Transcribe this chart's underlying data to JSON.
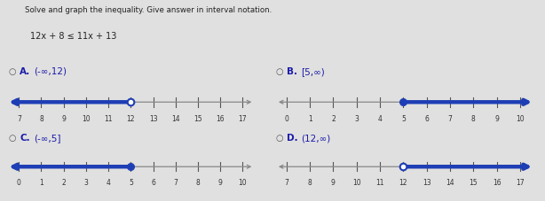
{
  "title": "Solve and graph the inequality. Give answer in interval notation.",
  "equation": "12x + 8 ≤ 11x + 13",
  "bg_color": "#e0e0e0",
  "line_color": "#1e3eb5",
  "axis_color": "#888888",
  "text_color": "#222222",
  "blue_label_color": "#1a1aaa",
  "radio_color": "#555555",
  "line_width": 3.2,
  "tick_fontsize": 5.5,
  "label_fontsize": 7.5,
  "options": [
    {
      "label": "A",
      "interval_text": "(-∞,12)",
      "number_line": {
        "xmin": 7,
        "xmax": 17,
        "ticks": [
          7,
          8,
          9,
          10,
          11,
          12,
          13,
          14,
          15,
          16,
          17
        ],
        "endpoint": 12,
        "closed": false,
        "direction": "left",
        "has_left_arrow": true,
        "has_right_arrow": true
      }
    },
    {
      "label": "B",
      "interval_text": "[5,∞)",
      "number_line": {
        "xmin": 0,
        "xmax": 10,
        "ticks": [
          0,
          1,
          2,
          3,
          4,
          5,
          6,
          7,
          8,
          9,
          10
        ],
        "endpoint": 5,
        "closed": true,
        "direction": "right",
        "has_left_arrow": true,
        "has_right_arrow": true
      }
    },
    {
      "label": "C",
      "interval_text": "(-∞,5]",
      "number_line": {
        "xmin": 0,
        "xmax": 10,
        "ticks": [
          0,
          1,
          2,
          3,
          4,
          5,
          6,
          7,
          8,
          9,
          10
        ],
        "endpoint": 5,
        "closed": true,
        "direction": "left",
        "has_left_arrow": true,
        "has_right_arrow": true
      }
    },
    {
      "label": "D",
      "interval_text": "(12,∞)",
      "number_line": {
        "xmin": 7,
        "xmax": 17,
        "ticks": [
          7,
          8,
          9,
          10,
          11,
          12,
          13,
          14,
          15,
          16,
          17
        ],
        "endpoint": 12,
        "closed": false,
        "direction": "right",
        "has_left_arrow": true,
        "has_right_arrow": true
      }
    }
  ]
}
